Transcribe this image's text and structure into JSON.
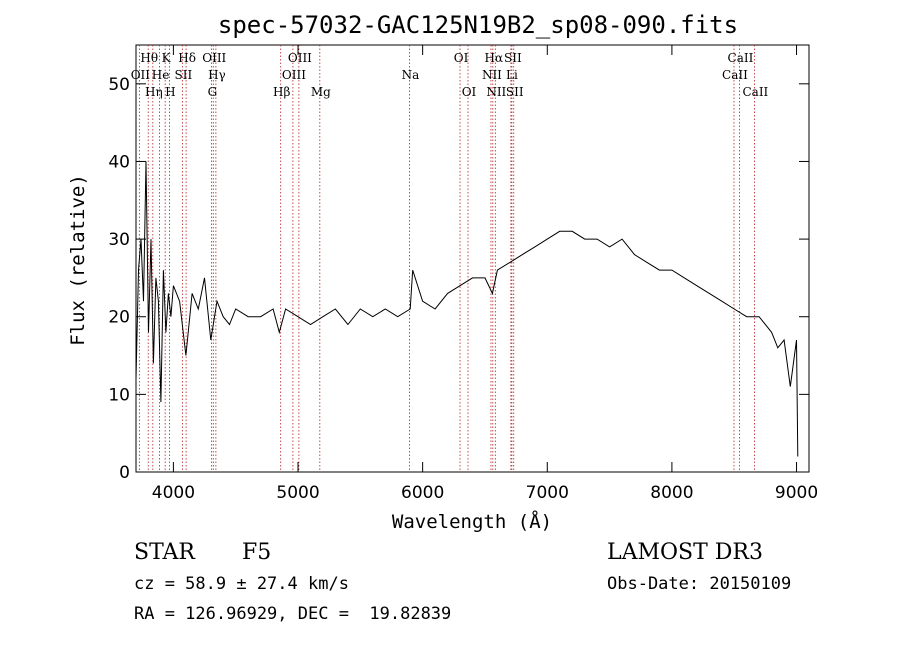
{
  "chart_data": {
    "type": "line",
    "title": "spec-57032-GAC125N19B2_sp08-090.fits",
    "xlabel": "Wavelength (Å)",
    "ylabel": "Flux (relative)",
    "xlim": [
      3700,
      9100
    ],
    "ylim": [
      0,
      55
    ],
    "xticks": [
      4000,
      5000,
      6000,
      7000,
      8000,
      9000
    ],
    "yticks": [
      0,
      10,
      20,
      30,
      40,
      50
    ],
    "grid": false,
    "series": [
      {
        "name": "flux",
        "x": [
          3700,
          3720,
          3740,
          3760,
          3780,
          3800,
          3820,
          3840,
          3860,
          3880,
          3900,
          3920,
          3940,
          3960,
          3980,
          4000,
          4050,
          4100,
          4150,
          4200,
          4250,
          4300,
          4350,
          4400,
          4450,
          4500,
          4600,
          4700,
          4800,
          4850,
          4900,
          5000,
          5100,
          5200,
          5300,
          5400,
          5500,
          5600,
          5700,
          5800,
          5900,
          5920,
          6000,
          6100,
          6200,
          6300,
          6400,
          6500,
          6560,
          6600,
          6700,
          6800,
          6900,
          7000,
          7100,
          7200,
          7300,
          7400,
          7500,
          7600,
          7700,
          7800,
          7900,
          8000,
          8100,
          8200,
          8300,
          8400,
          8500,
          8600,
          8700,
          8800,
          8850,
          8900,
          8950,
          9000,
          9010
        ],
        "y": [
          12,
          26,
          30,
          22,
          40,
          18,
          30,
          14,
          25,
          22,
          9,
          26,
          18,
          23,
          20,
          24,
          22,
          15,
          23,
          21,
          25,
          17,
          22,
          20,
          19,
          21,
          20,
          20,
          21,
          18,
          21,
          20,
          19,
          20,
          21,
          19,
          21,
          20,
          21,
          20,
          21,
          26,
          22,
          21,
          23,
          24,
          25,
          25,
          23,
          26,
          27,
          28,
          29,
          30,
          31,
          31,
          30,
          30,
          29,
          30,
          28,
          27,
          26,
          26,
          25,
          24,
          23,
          22,
          21,
          20,
          20,
          18,
          16,
          17,
          11,
          17,
          2
        ]
      }
    ],
    "lines": [
      {
        "name": "OII",
        "wave": 3727,
        "row": 2
      },
      {
        "name": "Hθ",
        "wave": 3798,
        "row": 1
      },
      {
        "name": "Hη",
        "wave": 3835,
        "row": 3
      },
      {
        "name": "He",
        "wave": 3889,
        "row": 2
      },
      {
        "name": "K",
        "wave": 3934,
        "row": 1
      },
      {
        "name": "H",
        "wave": 3968,
        "row": 3
      },
      {
        "name": "SII",
        "wave": 4072,
        "row": 2
      },
      {
        "name": "Hδ",
        "wave": 4102,
        "row": 1
      },
      {
        "name": "G",
        "wave": 4305,
        "row": 3
      },
      {
        "name": "OIII",
        "wave": 4320,
        "row": 1
      },
      {
        "name": "Hγ",
        "wave": 4341,
        "row": 2
      },
      {
        "name": "Hβ",
        "wave": 4861,
        "row": 3
      },
      {
        "name": "OIII",
        "wave": 4959,
        "row": 2
      },
      {
        "name": "OIII",
        "wave": 5007,
        "row": 1
      },
      {
        "name": "Mg",
        "wave": 5175,
        "row": 3
      },
      {
        "name": "Na",
        "wave": 5894,
        "row": 2
      },
      {
        "name": "OI",
        "wave": 6300,
        "row": 1
      },
      {
        "name": "OI",
        "wave": 6364,
        "row": 3
      },
      {
        "name": "NII",
        "wave": 6548,
        "row": 2
      },
      {
        "name": "Hα",
        "wave": 6563,
        "row": 1
      },
      {
        "name": "NII",
        "wave": 6583,
        "row": 3
      },
      {
        "name": "Li",
        "wave": 6708,
        "row": 2
      },
      {
        "name": "SII",
        "wave": 6716,
        "row": 1
      },
      {
        "name": "SII",
        "wave": 6731,
        "row": 3
      },
      {
        "name": "CaII",
        "wave": 8498,
        "row": 2
      },
      {
        "name": "CaII",
        "wave": 8542,
        "row": 1
      },
      {
        "name": "CaII",
        "wave": 8662,
        "row": 3
      }
    ]
  },
  "info": {
    "object_class": "STAR",
    "subclass": "F5",
    "survey": "LAMOST DR3",
    "velocity": "cz = 58.9 ± 27.4 km/s",
    "obs_date": "Obs-Date: 20150109",
    "coords": "RA = 126.96929, DEC =  19.82839"
  }
}
